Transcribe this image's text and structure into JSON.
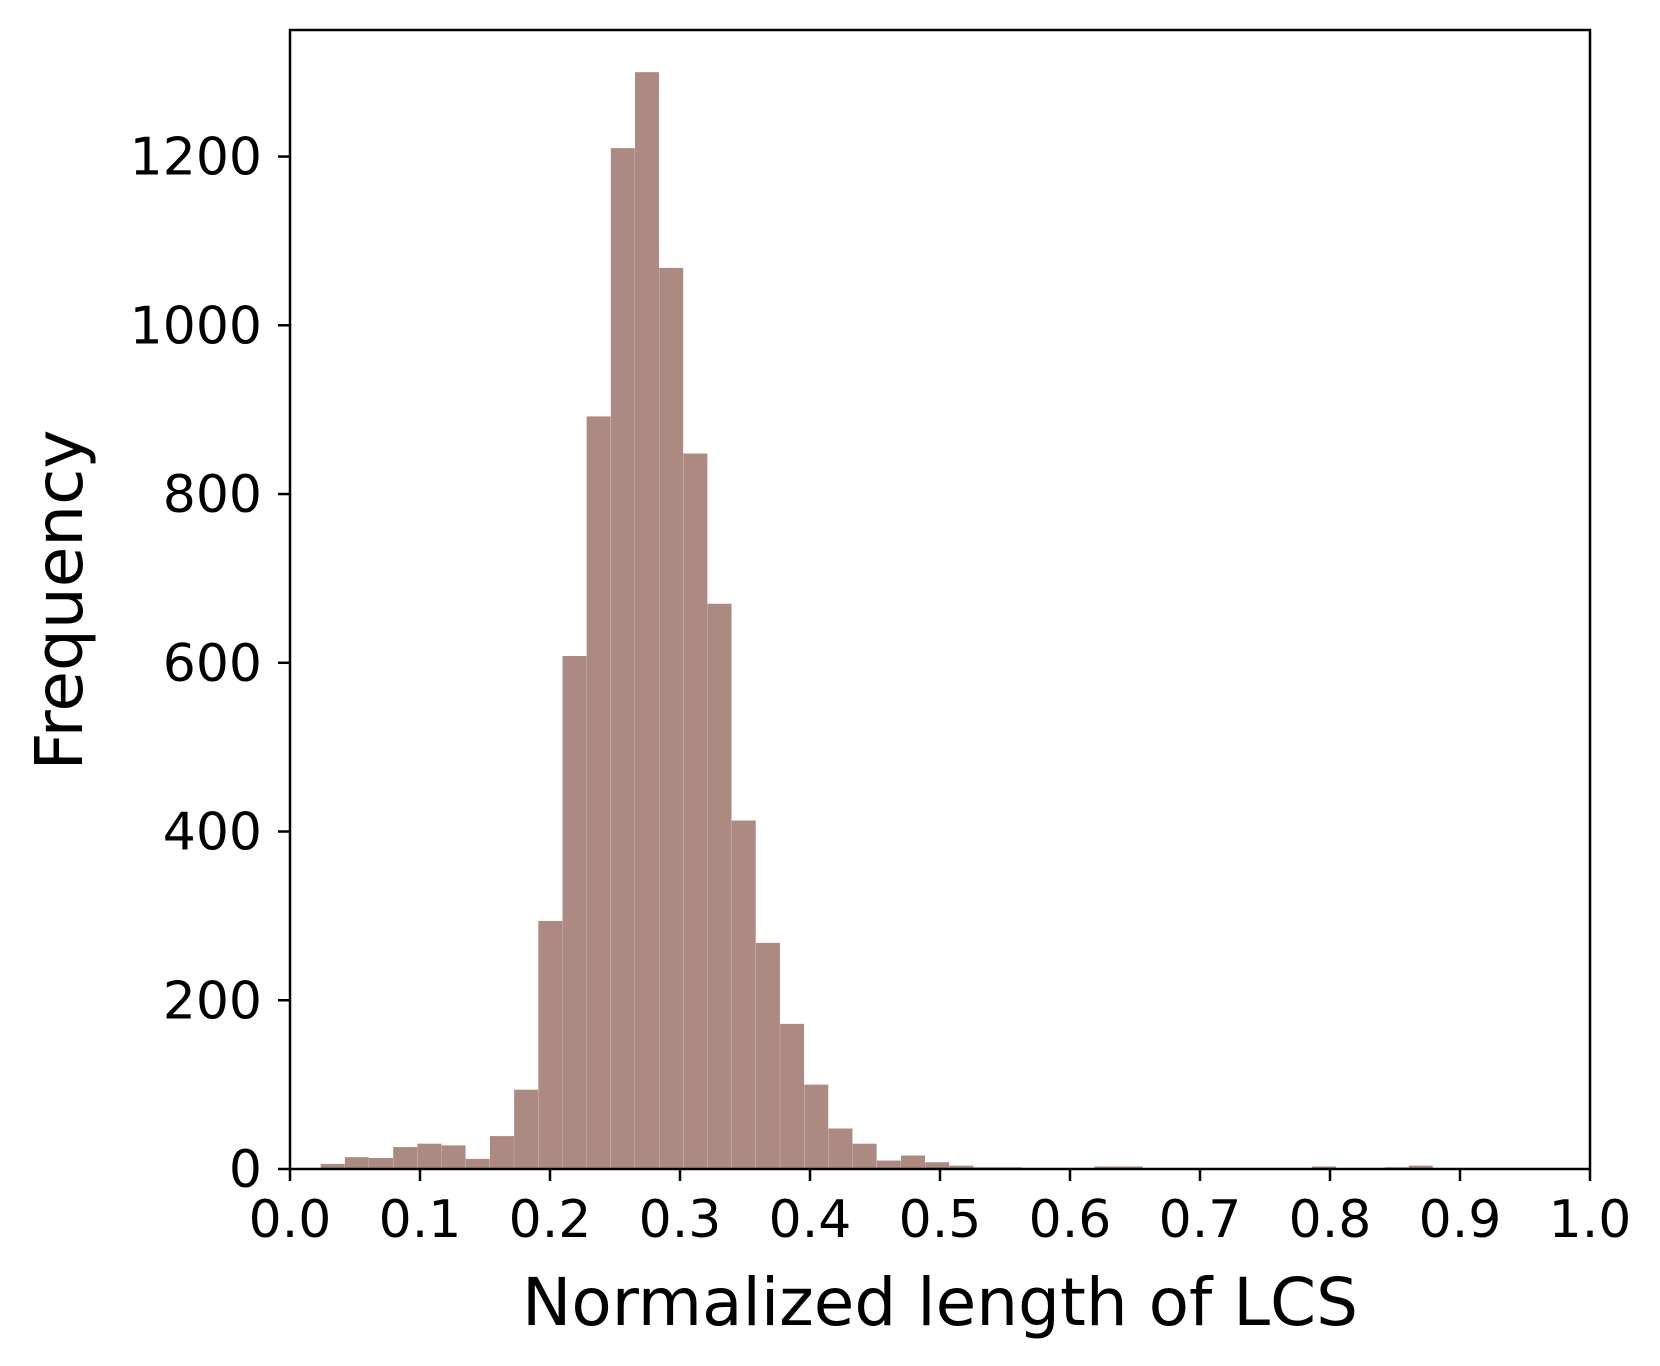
{
  "chart_data": {
    "type": "bar",
    "title": "",
    "xlabel": "Normalized length of LCS",
    "ylabel": "Frequency",
    "xlim": [
      0.0,
      1.0
    ],
    "ylim": [
      0,
      1350
    ],
    "grid": false,
    "bar_color": "#ac8981",
    "x_ticks": [
      "0.0",
      "0.1",
      "0.2",
      "0.3",
      "0.4",
      "0.5",
      "0.6",
      "0.7",
      "0.8",
      "0.9",
      "1.0"
    ],
    "x_tick_values": [
      0.0,
      0.1,
      0.2,
      0.3,
      0.4,
      0.5,
      0.6,
      0.7,
      0.8,
      0.9,
      1.0
    ],
    "y_ticks": [
      "0",
      "200",
      "400",
      "600",
      "800",
      "1000",
      "1200"
    ],
    "y_tick_values": [
      0,
      200,
      400,
      600,
      800,
      1000,
      1200
    ],
    "bins": [
      {
        "x0": 0.0236,
        "x1": 0.0422,
        "value": 6
      },
      {
        "x0": 0.0422,
        "x1": 0.0608,
        "value": 14
      },
      {
        "x0": 0.0608,
        "x1": 0.0794,
        "value": 13
      },
      {
        "x0": 0.0794,
        "x1": 0.098,
        "value": 26
      },
      {
        "x0": 0.098,
        "x1": 0.1166,
        "value": 30
      },
      {
        "x0": 0.1166,
        "x1": 0.1352,
        "value": 28
      },
      {
        "x0": 0.1352,
        "x1": 0.1538,
        "value": 12
      },
      {
        "x0": 0.1538,
        "x1": 0.1724,
        "value": 39
      },
      {
        "x0": 0.1724,
        "x1": 0.191,
        "value": 94
      },
      {
        "x0": 0.191,
        "x1": 0.2096,
        "value": 294
      },
      {
        "x0": 0.2096,
        "x1": 0.2282,
        "value": 608
      },
      {
        "x0": 0.2282,
        "x1": 0.2468,
        "value": 892
      },
      {
        "x0": 0.2468,
        "x1": 0.2654,
        "value": 1210
      },
      {
        "x0": 0.2654,
        "x1": 0.284,
        "value": 1300
      },
      {
        "x0": 0.284,
        "x1": 0.3026,
        "value": 1068
      },
      {
        "x0": 0.3026,
        "x1": 0.3212,
        "value": 848
      },
      {
        "x0": 0.3212,
        "x1": 0.3398,
        "value": 670
      },
      {
        "x0": 0.3398,
        "x1": 0.3584,
        "value": 413
      },
      {
        "x0": 0.3584,
        "x1": 0.377,
        "value": 268
      },
      {
        "x0": 0.377,
        "x1": 0.3956,
        "value": 172
      },
      {
        "x0": 0.3956,
        "x1": 0.4142,
        "value": 100
      },
      {
        "x0": 0.4142,
        "x1": 0.4328,
        "value": 48
      },
      {
        "x0": 0.4328,
        "x1": 0.4514,
        "value": 30
      },
      {
        "x0": 0.4514,
        "x1": 0.47,
        "value": 10
      },
      {
        "x0": 0.47,
        "x1": 0.4886,
        "value": 16
      },
      {
        "x0": 0.4886,
        "x1": 0.5072,
        "value": 8
      },
      {
        "x0": 0.5072,
        "x1": 0.5258,
        "value": 4
      },
      {
        "x0": 0.5258,
        "x1": 0.5444,
        "value": 2
      },
      {
        "x0": 0.5444,
        "x1": 0.563,
        "value": 2
      },
      {
        "x0": 0.6002,
        "x1": 0.6188,
        "value": 1
      },
      {
        "x0": 0.6188,
        "x1": 0.6374,
        "value": 3
      },
      {
        "x0": 0.6374,
        "x1": 0.656,
        "value": 3
      },
      {
        "x0": 0.7304,
        "x1": 0.749,
        "value": 1
      },
      {
        "x0": 0.7862,
        "x1": 0.8048,
        "value": 3
      },
      {
        "x0": 0.842,
        "x1": 0.8606,
        "value": 2
      },
      {
        "x0": 0.8606,
        "x1": 0.8792,
        "value": 4
      },
      {
        "x0": 0.8978,
        "x1": 0.9164,
        "value": 1
      }
    ]
  }
}
